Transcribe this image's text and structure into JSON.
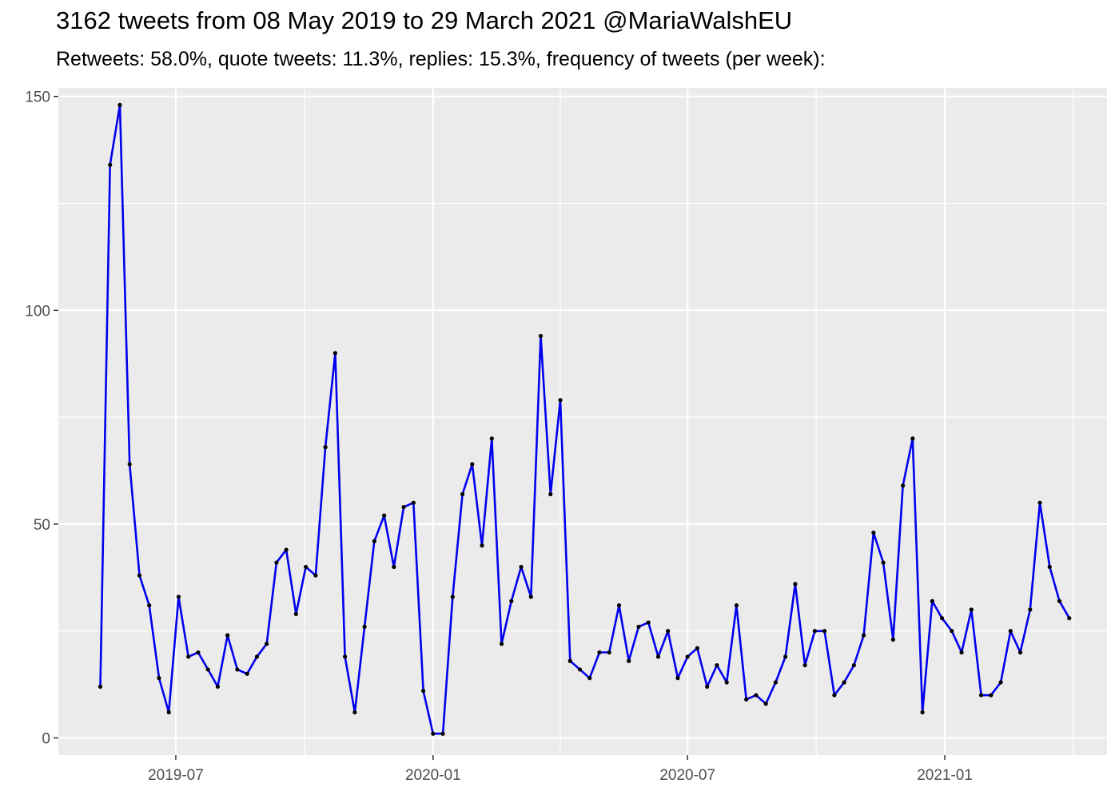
{
  "chart_data": {
    "type": "line",
    "title": "3162 tweets from 08 May 2019 to 29 March 2021 @MariaWalshEU",
    "subtitle": "Retweets: 58.0%, quote tweets: 11.3%, replies: 15.3%, frequency of tweets (per week):",
    "xlabel": "",
    "ylabel": "",
    "x_ticks": [
      "2019-07",
      "2020-01",
      "2020-07",
      "2021-01"
    ],
    "y_ticks": [
      0,
      50,
      100,
      150
    ],
    "ylim": [
      -4,
      152
    ],
    "grid": true,
    "line_color": "#0000ee",
    "point_color": "#000000",
    "panel_color": "#ebebeb",
    "x_start": "2019-05-08",
    "values": [
      12,
      134,
      148,
      64,
      38,
      31,
      14,
      6,
      33,
      19,
      20,
      16,
      12,
      24,
      16,
      15,
      19,
      22,
      41,
      44,
      29,
      40,
      38,
      68,
      90,
      19,
      6,
      26,
      46,
      52,
      40,
      54,
      55,
      11,
      1,
      1,
      33,
      57,
      64,
      45,
      70,
      22,
      32,
      40,
      33,
      94,
      57,
      79,
      18,
      16,
      14,
      20,
      20,
      31,
      18,
      26,
      27,
      19,
      25,
      14,
      19,
      21,
      12,
      17,
      13,
      31,
      9,
      10,
      8,
      13,
      19,
      36,
      17,
      25,
      25,
      10,
      13,
      17,
      24,
      48,
      41,
      23,
      59,
      70,
      6,
      32,
      28,
      25,
      20,
      30,
      10,
      10,
      13,
      25,
      20,
      30,
      55,
      40,
      32,
      28
    ]
  }
}
